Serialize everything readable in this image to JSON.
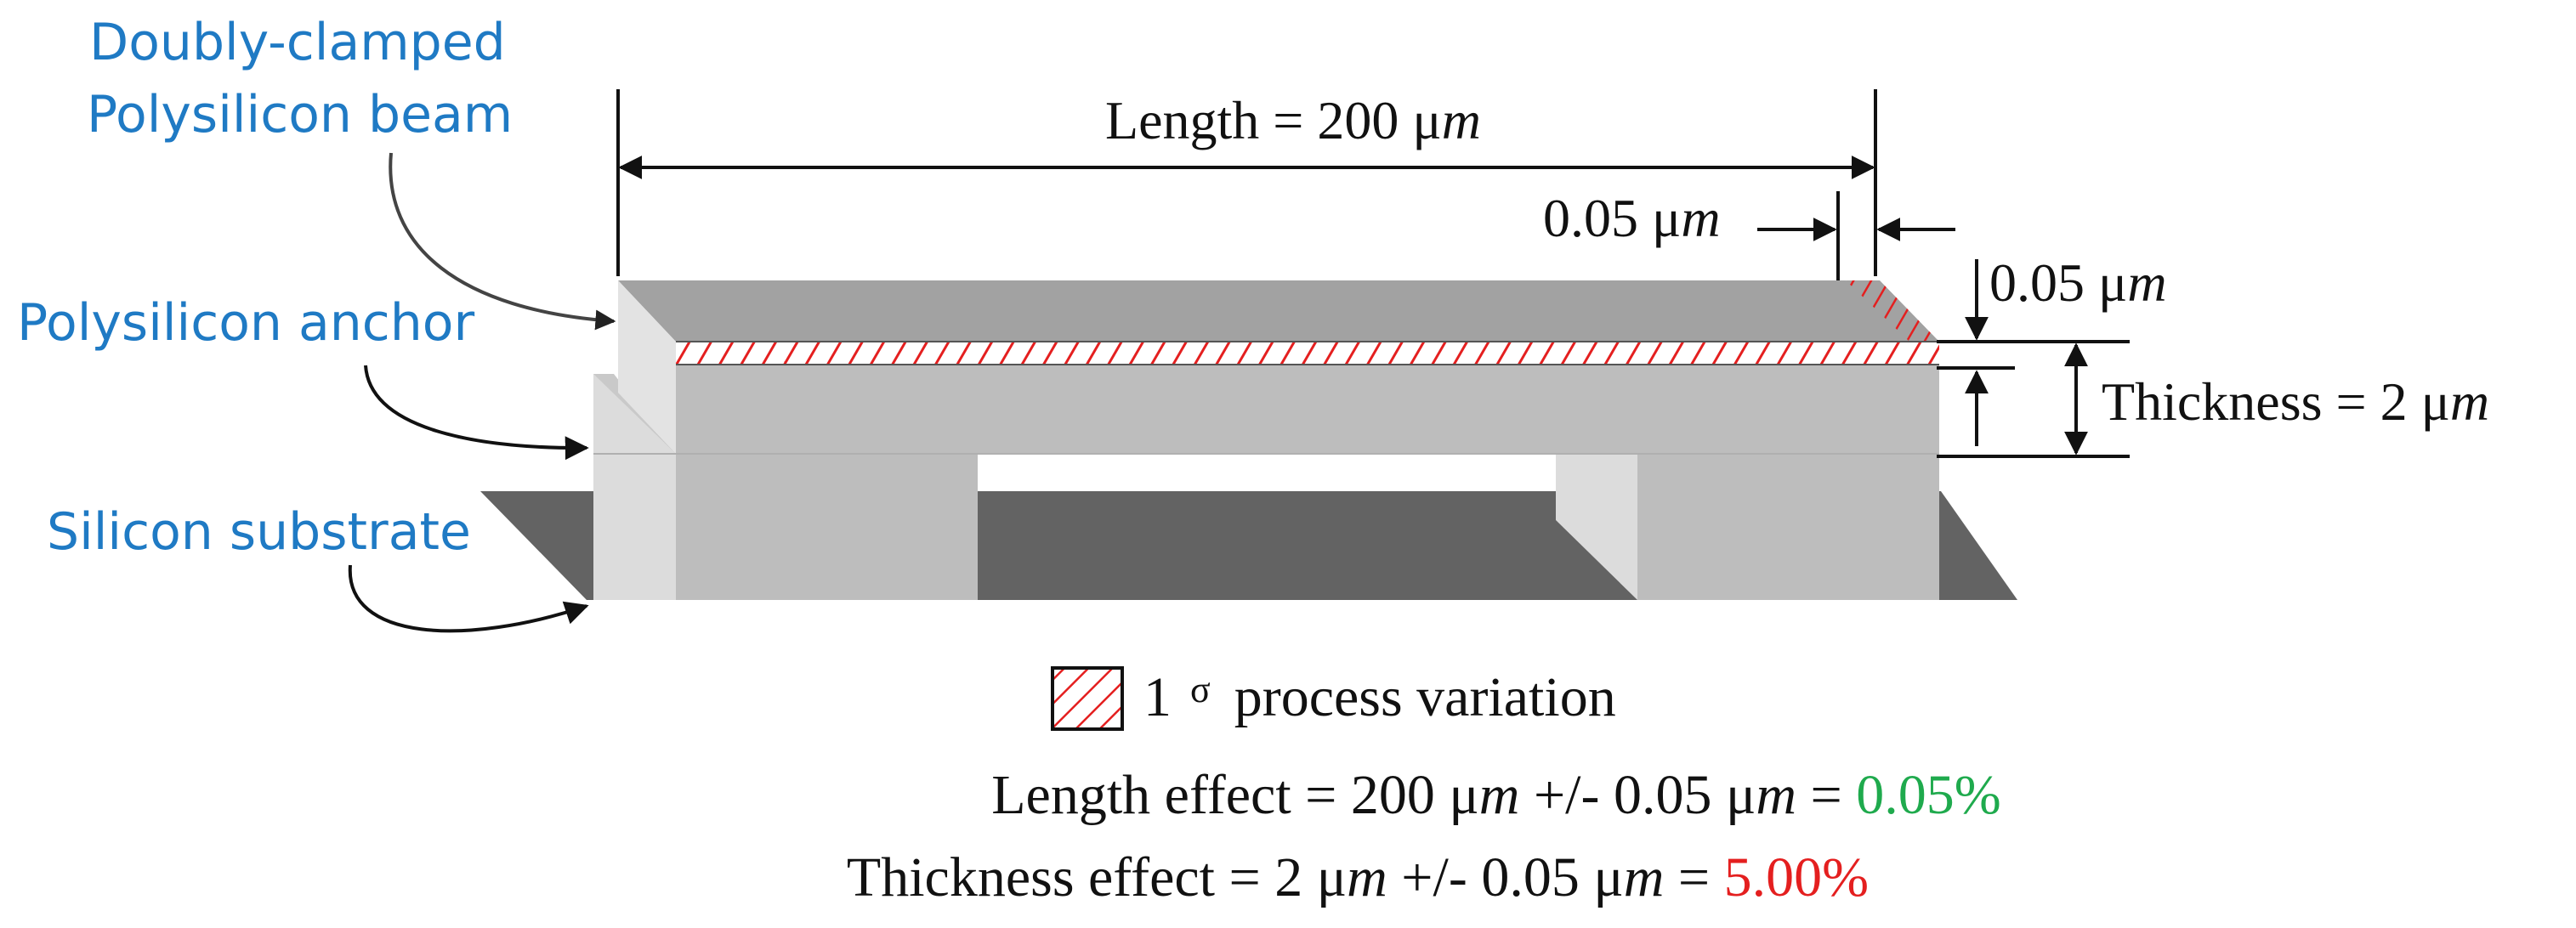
{
  "labels": {
    "beam_line1": "Doubly-clamped",
    "beam_line2": "Polysilicon beam",
    "anchor": "Polysilicon anchor",
    "substrate": "Silicon substrate"
  },
  "dimensions": {
    "length_prefix": "Length = 200 μ",
    "length_unit": "m",
    "length_var_prefix": "0.05 μ",
    "length_var_unit": "m",
    "thick_var_prefix": "0.05 μ",
    "thick_var_unit": "m",
    "thickness_prefix": "Thickness = 2 μ",
    "thickness_unit": "m"
  },
  "legend": {
    "sigma_label": "1",
    "sigma_symbol": "σ",
    "text": "process variation"
  },
  "effects": {
    "length_a": "Length effect = 200 μ",
    "length_b": "m",
    "length_c": " +/- 0.05 μ",
    "length_d": "m",
    "length_e": " = ",
    "length_pct": "0.05%",
    "thick_a": "Thickness effect = 2 μ",
    "thick_b": "m",
    "thick_c": " +/- 0.05 μ",
    "thick_d": "m",
    "thick_e": " = ",
    "thick_pct": "5.00%"
  },
  "colors": {
    "label_blue": "#1f7ac4",
    "good_green": "#1faa4d",
    "bad_red": "#e41f1f"
  }
}
